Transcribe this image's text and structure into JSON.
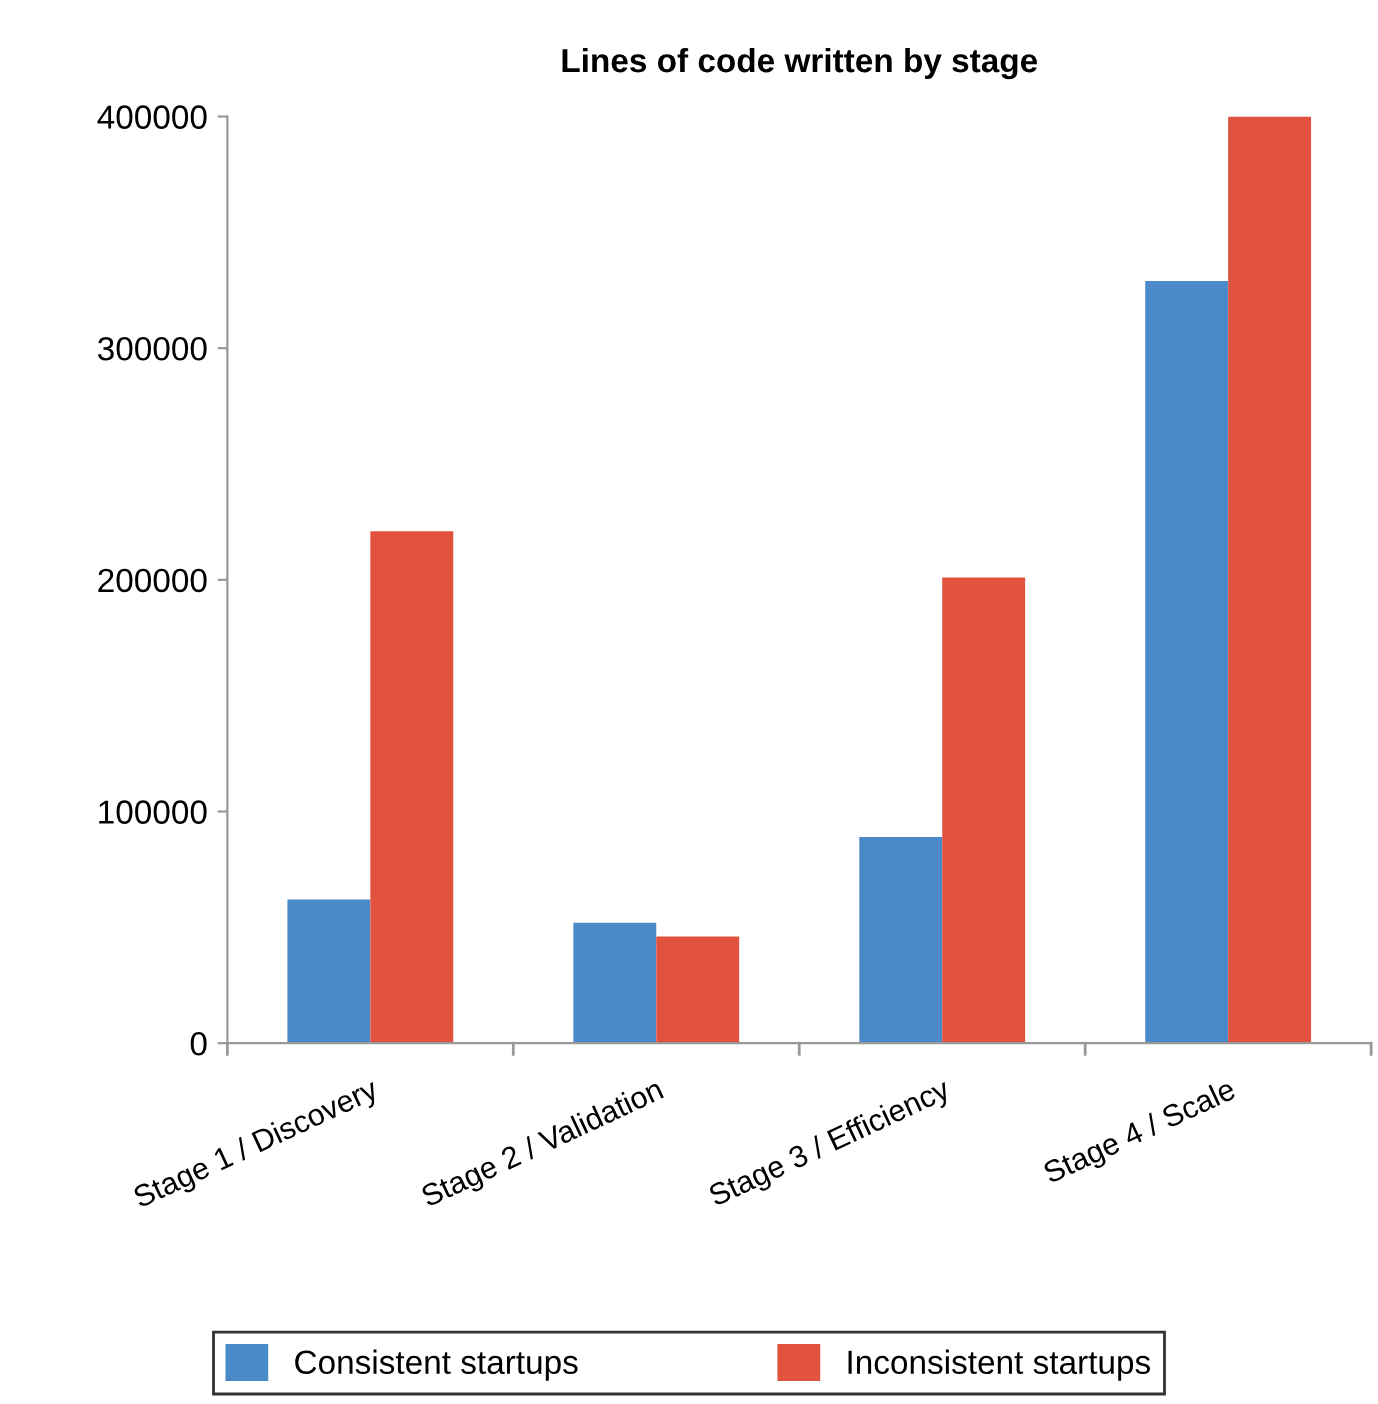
{
  "chart_data": {
    "type": "bar",
    "title": "Lines of code written by stage",
    "categories": [
      "Stage 1 / Discovery",
      "Stage 2 / Validation",
      "Stage 3 / Efficiency",
      "Stage 4 / Scale"
    ],
    "series": [
      {
        "name": "Consistent startups",
        "color": "#4a8ac8",
        "values": [
          62000,
          52000,
          89000,
          329000
        ]
      },
      {
        "name": "Inconsistent startups",
        "color": "#e2533f",
        "values": [
          221000,
          46000,
          201000,
          400000
        ]
      }
    ],
    "ylim": [
      0,
      400000
    ],
    "yticks": [
      0,
      100000,
      200000,
      300000,
      400000
    ],
    "grid": false,
    "legend": "bottom"
  }
}
